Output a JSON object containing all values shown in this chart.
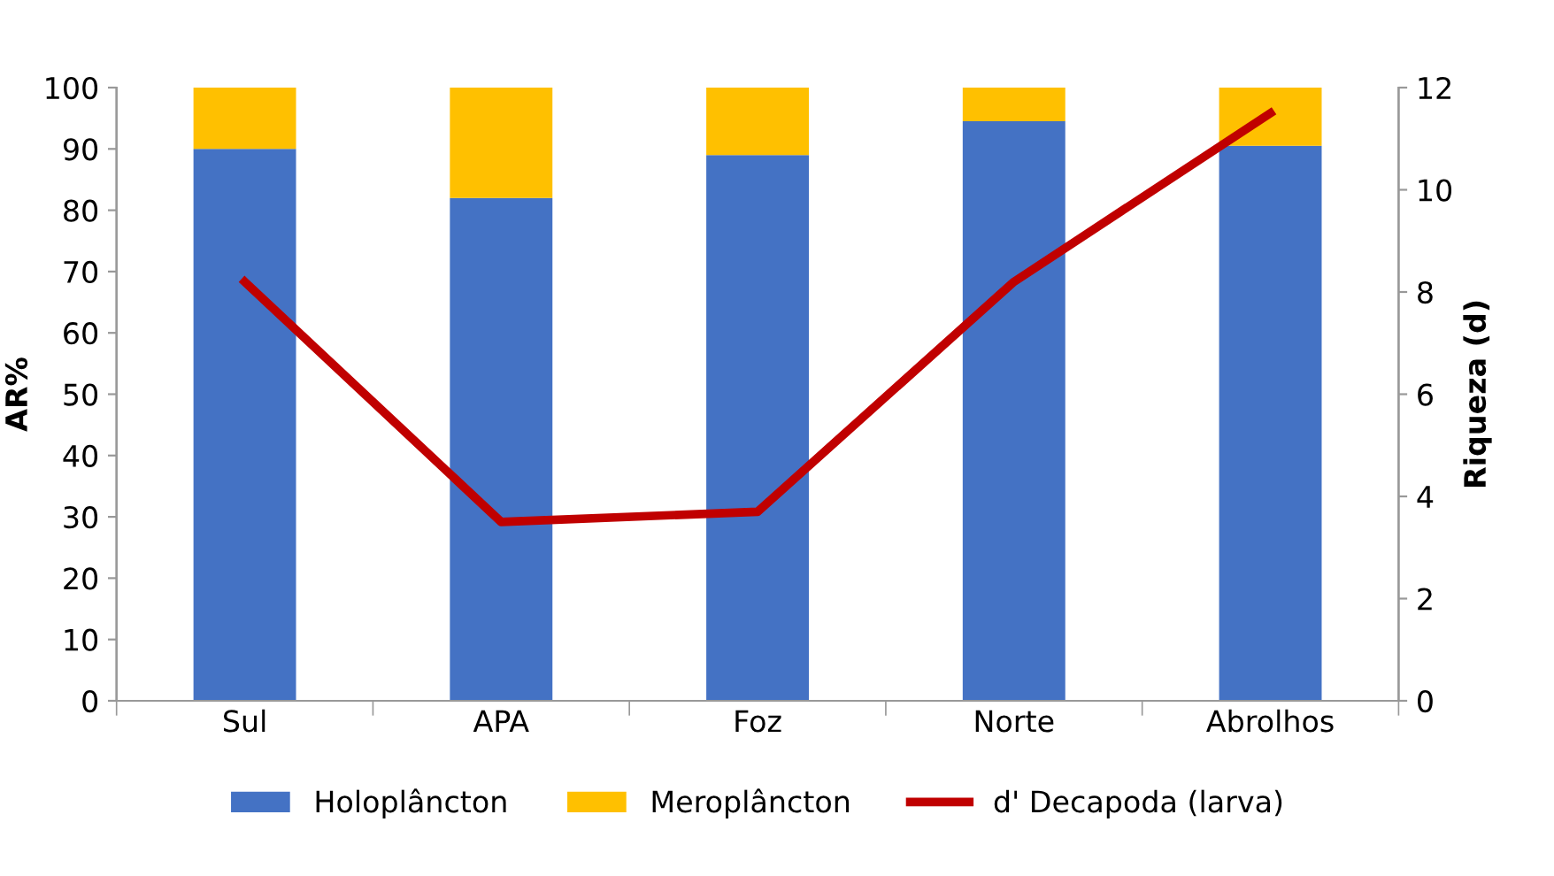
{
  "chart_data": {
    "type": "bar",
    "stacked": true,
    "categories": [
      "Sul",
      "APA",
      "Foz",
      "Norte",
      "Abrolhos"
    ],
    "ylabel": "AR%",
    "y2label": "Riqueza (d)",
    "ylim": [
      0,
      100
    ],
    "yticks": [
      0,
      10,
      20,
      30,
      40,
      50,
      60,
      70,
      80,
      90,
      100
    ],
    "y2lim": [
      0,
      12
    ],
    "y2ticks": [
      0,
      2,
      4,
      6,
      8,
      10,
      12
    ],
    "grid": false,
    "legend": "bottom",
    "series": [
      {
        "name": "Holoplâncton",
        "color": "#4472c4",
        "values": [
          90,
          82,
          89,
          94.5,
          90.5
        ]
      },
      {
        "name": "Meroplâncton",
        "color": "#ffc000",
        "values": [
          10,
          18,
          11,
          5.5,
          9.5
        ]
      },
      {
        "name": "d' Decapoda (larva)",
        "type": "line",
        "axis": "y2",
        "color": "#c00000",
        "values": [
          8.2,
          3.5,
          3.7,
          8.2,
          11.5
        ]
      }
    ]
  }
}
